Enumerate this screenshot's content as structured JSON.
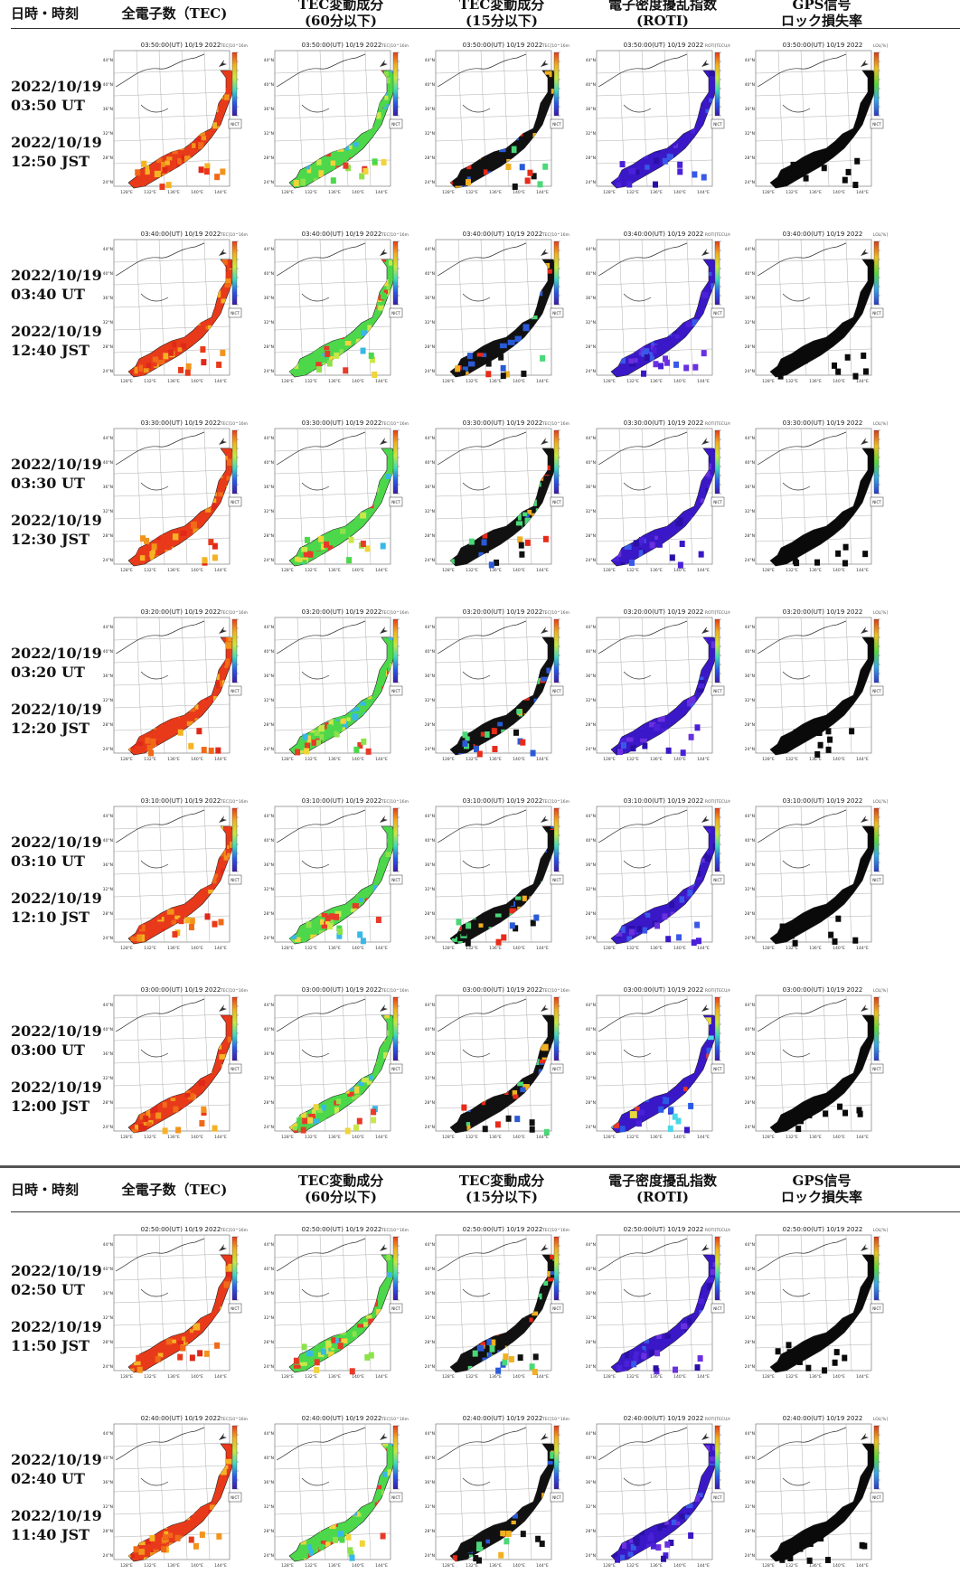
{
  "header_columns": [
    "日時・時刻",
    "全電子数（TEC)",
    "TEC変動成分\n(60分以下)",
    "TEC変動成分\n(15分以下)",
    "電子密度擾乱指数\n(ROTI)",
    "GPS信号\nロック損失率"
  ],
  "panel_lat_labels": [
    "44°N",
    "40°N",
    "36°N",
    "32°N",
    "28°N",
    "24°N"
  ],
  "panel_lon_labels": [
    "128°E",
    "132°E",
    "136°E",
    "140°E",
    "144°E"
  ],
  "colorbar_units": [
    "TEC[10^16m^-2]",
    "TEC[10^16m^-2]",
    "TEC[10^16m^-2]",
    "ROTI[TECU/min]",
    "LOL[%]"
  ],
  "source_badge": "NICT",
  "rows": [
    {
      "date": "2022/10/19",
      "ut": "03:50 UT",
      "jst": "12:50 JST",
      "panel_title": "03:50:00(UT) 10/19 2022"
    },
    {
      "date": "2022/10/19",
      "ut": "03:40 UT",
      "jst": "12:40 JST",
      "panel_title": "03:40:00(UT) 10/19 2022"
    },
    {
      "date": "2022/10/19",
      "ut": "03:30 UT",
      "jst": "12:30 JST",
      "panel_title": "03:30:00(UT) 10/19 2022"
    },
    {
      "date": "2022/10/19",
      "ut": "03:20 UT",
      "jst": "12:20 JST",
      "panel_title": "03:20:00(UT) 10/19 2022"
    },
    {
      "date": "2022/10/19",
      "ut": "03:10 UT",
      "jst": "12:10 JST",
      "panel_title": "03:10:00(UT) 10/19 2022"
    },
    {
      "date": "2022/10/19",
      "ut": "03:00 UT",
      "jst": "12:00 JST",
      "panel_title": "03:00:00(UT) 10/19 2022"
    },
    {
      "date": "2022/10/19",
      "ut": "02:50 UT",
      "jst": "11:50 JST",
      "panel_title": "02:50:00(UT) 10/19 2022"
    },
    {
      "date": "2022/10/19",
      "ut": "02:40 UT",
      "jst": "11:40 JST",
      "panel_title": "02:40:00(UT) 10/19 2022"
    }
  ],
  "palettes": {
    "tec": [
      "#e83a1a",
      "#f06a18",
      "#f2941c",
      "#f5b324",
      "#e02818"
    ],
    "tec60": [
      "#4cd84a",
      "#8ce24a",
      "#c8e84a",
      "#f0d43a",
      "#38b8e8",
      "#e83a28"
    ],
    "tec15": [
      "#111111",
      "#111111",
      "#e82a18",
      "#f0b020",
      "#2a5ad8",
      "#4ad878",
      "#111111"
    ],
    "roti": [
      "#3a18c8",
      "#4a20d8",
      "#2a10a8",
      "#6a30e0",
      "#3a58e8"
    ],
    "roti00": [
      "#3a18c8",
      "#2a58e8",
      "#4ad8e8",
      "#e8d83a",
      "#e83a28",
      "#4a20d8"
    ],
    "lol": [
      "#0a0a0a"
    ]
  }
}
